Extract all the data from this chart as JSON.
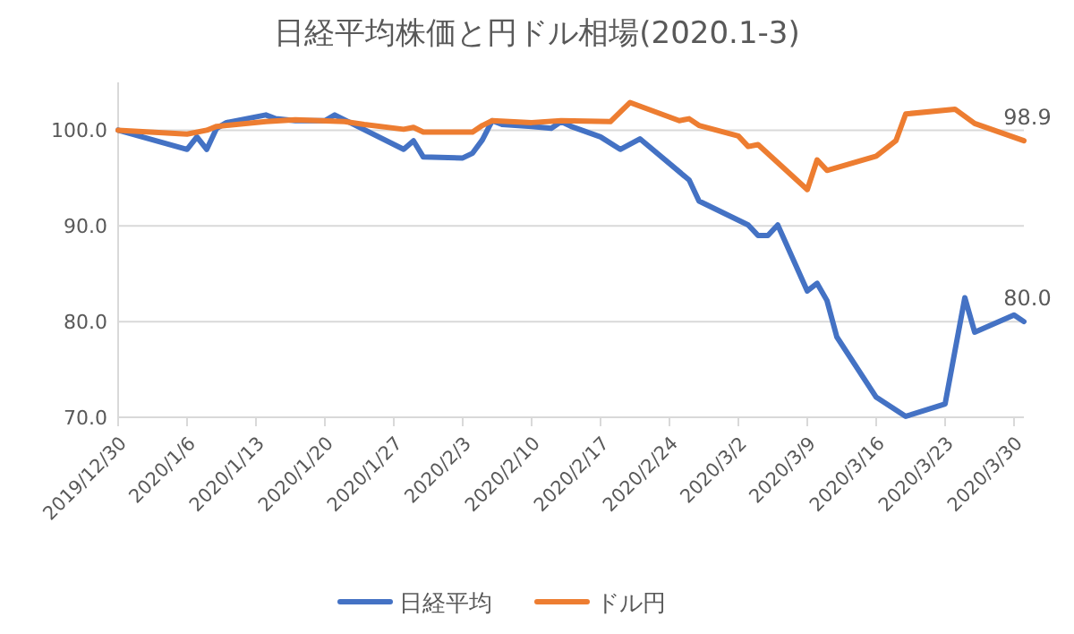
{
  "chart_data": {
    "type": "line",
    "title": "日経平均株価と円ドル相場(2020.1-3)",
    "xlim": [
      "2019-12-30",
      "2020-03-31"
    ],
    "xticks": [
      {
        "value": "2019-12-30",
        "label": "2019/12/30"
      },
      {
        "value": "2020-01-06",
        "label": "2020/1/6"
      },
      {
        "value": "2020-01-13",
        "label": "2020/1/13"
      },
      {
        "value": "2020-01-20",
        "label": "2020/1/20"
      },
      {
        "value": "2020-01-27",
        "label": "2020/1/27"
      },
      {
        "value": "2020-02-03",
        "label": "2020/2/3"
      },
      {
        "value": "2020-02-10",
        "label": "2020/2/10"
      },
      {
        "value": "2020-02-17",
        "label": "2020/2/17"
      },
      {
        "value": "2020-02-24",
        "label": "2020/2/24"
      },
      {
        "value": "2020-03-02",
        "label": "2020/3/2"
      },
      {
        "value": "2020-03-09",
        "label": "2020/3/9"
      },
      {
        "value": "2020-03-16",
        "label": "2020/3/16"
      },
      {
        "value": "2020-03-23",
        "label": "2020/3/23"
      },
      {
        "value": "2020-03-30",
        "label": "2020/3/30"
      }
    ],
    "ylim": [
      70,
      105
    ],
    "yticks": [
      {
        "value": 70,
        "label": "70.0"
      },
      {
        "value": 80,
        "label": "80.0"
      },
      {
        "value": 90,
        "label": "90.0"
      },
      {
        "value": 100,
        "label": "100.0"
      }
    ],
    "grid": "y",
    "legend": "bottom",
    "marker": "none",
    "line_style": "solid",
    "series": [
      {
        "name": "日経平均",
        "color": "#4472c4",
        "x": [
          "2019-12-30",
          "2020-01-06",
          "2020-01-07",
          "2020-01-08",
          "2020-01-09",
          "2020-01-10",
          "2020-01-14",
          "2020-01-15",
          "2020-01-17",
          "2020-01-20",
          "2020-01-21",
          "2020-01-28",
          "2020-01-29",
          "2020-01-30",
          "2020-02-03",
          "2020-02-04",
          "2020-02-05",
          "2020-02-06",
          "2020-02-07",
          "2020-02-10",
          "2020-02-12",
          "2020-02-13",
          "2020-02-14",
          "2020-02-17",
          "2020-02-19",
          "2020-02-21",
          "2020-02-26",
          "2020-02-27",
          "2020-03-03",
          "2020-03-04",
          "2020-03-05",
          "2020-03-06",
          "2020-03-09",
          "2020-03-10",
          "2020-03-11",
          "2020-03-12",
          "2020-03-16",
          "2020-03-19",
          "2020-03-23",
          "2020-03-25",
          "2020-03-26",
          "2020-03-30",
          "2020-03-31"
        ],
        "values": [
          100,
          98.0,
          99.3,
          98.0,
          100.2,
          100.8,
          101.6,
          101.2,
          101.0,
          101.0,
          101.6,
          98.0,
          98.9,
          97.2,
          97.1,
          97.6,
          99.0,
          101.0,
          100.6,
          100.4,
          100.2,
          100.9,
          100.4,
          99.3,
          98.0,
          99.1,
          94.8,
          92.6,
          90.1,
          89.0,
          89.0,
          90.1,
          83.2,
          84.0,
          82.2,
          78.4,
          72.1,
          70.1,
          71.4,
          82.5,
          78.9,
          80.7,
          80.0
        ],
        "value_labels": [
          null,
          null,
          null,
          null,
          null,
          null,
          null,
          null,
          null,
          null,
          null,
          null,
          null,
          null,
          null,
          null,
          null,
          null,
          null,
          null,
          null,
          null,
          null,
          null,
          null,
          null,
          null,
          null,
          null,
          null,
          null,
          null,
          null,
          null,
          null,
          null,
          null,
          null,
          null,
          null,
          null,
          null,
          "80.0"
        ]
      },
      {
        "name": "ドル円",
        "color": "#ed7d31",
        "x": [
          "2019-12-30",
          "2020-01-06",
          "2020-01-08",
          "2020-01-09",
          "2020-01-14",
          "2020-01-17",
          "2020-01-22",
          "2020-01-24",
          "2020-01-28",
          "2020-01-29",
          "2020-01-30",
          "2020-02-04",
          "2020-02-05",
          "2020-02-06",
          "2020-02-10",
          "2020-02-13",
          "2020-02-18",
          "2020-02-20",
          "2020-02-25",
          "2020-02-26",
          "2020-02-27",
          "2020-03-02",
          "2020-03-03",
          "2020-03-04",
          "2020-03-09",
          "2020-03-10",
          "2020-03-11",
          "2020-03-16",
          "2020-03-18",
          "2020-03-19",
          "2020-03-24",
          "2020-03-26",
          "2020-03-31"
        ],
        "values": [
          100,
          99.6,
          100.0,
          100.4,
          100.9,
          101.1,
          100.9,
          100.6,
          100.1,
          100.3,
          99.8,
          99.8,
          100.5,
          101.0,
          100.8,
          101.0,
          100.9,
          102.9,
          101.0,
          101.2,
          100.5,
          99.4,
          98.3,
          98.5,
          93.8,
          96.9,
          95.8,
          97.3,
          98.9,
          101.7,
          102.2,
          100.7,
          98.9
        ],
        "value_labels": [
          null,
          null,
          null,
          null,
          null,
          null,
          null,
          null,
          null,
          null,
          null,
          null,
          null,
          null,
          null,
          null,
          null,
          null,
          null,
          null,
          null,
          null,
          null,
          null,
          null,
          null,
          null,
          null,
          null,
          null,
          null,
          null,
          "98.9"
        ]
      }
    ]
  }
}
